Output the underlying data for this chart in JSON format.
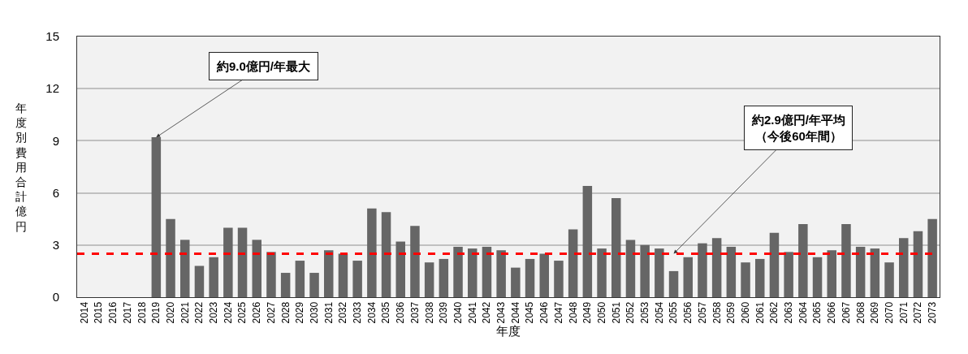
{
  "chart_data": {
    "type": "bar",
    "xlabel": "年度",
    "ylabel": "年度別費用合計億円",
    "categories": [
      "2014",
      "2015",
      "2016",
      "2017",
      "2018",
      "2019",
      "2020",
      "2021",
      "2022",
      "2023",
      "2024",
      "2025",
      "2026",
      "2027",
      "2028",
      "2029",
      "2030",
      "2031",
      "2032",
      "2033",
      "2034",
      "2035",
      "2036",
      "2037",
      "2038",
      "2039",
      "2040",
      "2041",
      "2042",
      "2043",
      "2044",
      "2045",
      "2046",
      "2047",
      "2048",
      "2049",
      "2050",
      "2051",
      "2052",
      "2053",
      "2054",
      "2055",
      "2056",
      "2057",
      "2058",
      "2059",
      "2060",
      "2061",
      "2062",
      "2063",
      "2064",
      "2065",
      "2066",
      "2067",
      "2068",
      "2069",
      "2070",
      "2071",
      "2072",
      "2073"
    ],
    "values": [
      0,
      0,
      0,
      0,
      0,
      9.2,
      4.5,
      3.3,
      1.8,
      2.3,
      4.0,
      4.0,
      3.3,
      2.6,
      1.4,
      2.1,
      1.4,
      2.7,
      2.5,
      2.1,
      5.1,
      4.9,
      3.2,
      4.1,
      2.0,
      2.2,
      2.9,
      2.8,
      2.9,
      2.7,
      1.7,
      2.2,
      2.5,
      2.1,
      3.9,
      6.4,
      2.8,
      5.7,
      3.3,
      3.0,
      2.8,
      1.5,
      2.3,
      3.1,
      3.4,
      2.9,
      2.0,
      2.2,
      3.7,
      2.6,
      4.2,
      2.3,
      2.7,
      4.2,
      2.9,
      2.8,
      2.0,
      3.4,
      3.8,
      4.5
    ],
    "color": "#666666",
    "ylim": [
      0,
      15
    ],
    "yticks": [
      0,
      3,
      6,
      9,
      12,
      15
    ],
    "grid": "y",
    "ref_lines": [
      {
        "axis": "y",
        "value": 2.5,
        "color": "#ff0000",
        "line_style": "dashed"
      }
    ],
    "annotations": [
      {
        "text": "約9.0億円/年最大",
        "x": "2019",
        "y": 9.2
      },
      {
        "text": "約2.9億円/年平均（今後60年間）",
        "x": "2055",
        "y": 2.5
      }
    ]
  }
}
